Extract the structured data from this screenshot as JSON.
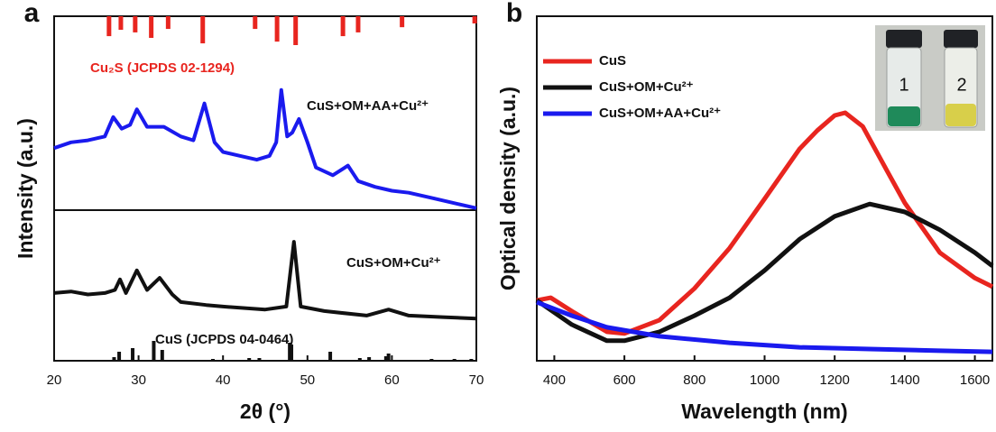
{
  "chart_data": [
    {
      "type": "xrd",
      "panel_label": "a",
      "xlabel": "2θ (°)",
      "ylabel": "Intensity (a.u.)",
      "xlim": [
        20,
        70
      ],
      "xticks": [
        20,
        30,
        40,
        50,
        60,
        70
      ],
      "panels": [
        {
          "ylim": [
            0,
            100
          ],
          "series": [
            {
              "name": "CuS+OM+AA+Cu²⁺",
              "color": "#1a1aee",
              "x": [
                20,
                22,
                24,
                26,
                27,
                28,
                29,
                29.8,
                31,
                33,
                35,
                36.5,
                37.8,
                39,
                40,
                42,
                44,
                45.5,
                46.3,
                46.9,
                47.6,
                48.2,
                49,
                50,
                51,
                53,
                54.8,
                56,
                58,
                60,
                62,
                65,
                68,
                70
              ],
              "values": [
                32,
                35,
                36,
                38,
                48,
                42,
                44,
                52,
                43,
                43,
                38,
                36,
                55,
                35,
                30,
                28,
                26,
                28,
                35,
                62,
                38,
                40,
                47,
                35,
                22,
                18,
                23,
                15,
                12,
                10,
                9,
                6,
                3,
                1
              ]
            }
          ],
          "reference": {
            "name": "Cu₂S (JCPDS 02-1294)",
            "color": "#e8251f",
            "position": "top",
            "x": [
              26.5,
              27.9,
              29.6,
              31.5,
              33.5,
              37.6,
              43.8,
              46.4,
              48.6,
              54.2,
              56.0,
              61.2,
              69.8
            ],
            "values": [
              69,
              47,
              56,
              75,
              44,
              94,
              44,
              88,
              100,
              69,
              56,
              38,
              25
            ]
          }
        },
        {
          "ylim": [
            0,
            100
          ],
          "series": [
            {
              "name": "CuS+OM+Cu²⁺",
              "color": "#111111",
              "x": [
                20,
                22,
                24,
                26,
                27.2,
                27.8,
                28.5,
                29.8,
                31,
                32.5,
                34,
                35,
                38,
                40,
                45,
                47.5,
                48.4,
                49.2,
                52,
                57,
                59.6,
                62,
                66,
                70
              ],
              "values": [
                45,
                46,
                44,
                45,
                47,
                54,
                45,
                60,
                47,
                55,
                44,
                39,
                37,
                36,
                34,
                36,
                79,
                36,
                33,
                30,
                34,
                30,
                29,
                28
              ]
            }
          ],
          "reference": {
            "name": "CuS (JCPDS 04-0464)",
            "color": "#111111",
            "position": "bottom",
            "x": [
              27.1,
              27.7,
              29.3,
              31.8,
              32.8,
              38.8,
              43.1,
              44.3,
              47.9,
              48.1,
              52.7,
              56.2,
              57.3,
              59.3,
              59.6,
              64.7,
              67.4,
              69.4
            ],
            "values": [
              16,
              40,
              56,
              88,
              48,
              8,
              12,
              12,
              80,
              72,
              40,
              12,
              16,
              20,
              32,
              8,
              8,
              8
            ]
          }
        }
      ]
    },
    {
      "type": "line",
      "panel_label": "b",
      "xlabel": "Wavelength (nm)",
      "ylabel": "Optical density (a.u.)",
      "xlim": [
        350,
        1650
      ],
      "xticks": [
        400,
        600,
        800,
        1000,
        1200,
        1400,
        1600
      ],
      "ylim": [
        0,
        100
      ],
      "inset_labels": [
        "1",
        "2"
      ],
      "series": [
        {
          "name": "CuS",
          "color": "#e8251f",
          "x": [
            350,
            390,
            450,
            550,
            600,
            700,
            800,
            900,
            1000,
            1100,
            1150,
            1200,
            1230,
            1280,
            1350,
            1400,
            1500,
            1600,
            1650
          ],
          "values": [
            17.5,
            18.3,
            14.4,
            8.4,
            7.9,
            11.8,
            21,
            32.7,
            47,
            61.5,
            66.8,
            71.2,
            72,
            68,
            55,
            45.8,
            31.4,
            24,
            21.5
          ]
        },
        {
          "name": "CuS+OM+Cu²⁺",
          "color": "#111111",
          "x": [
            350,
            450,
            550,
            600,
            700,
            800,
            900,
            1000,
            1100,
            1200,
            1300,
            1400,
            1500,
            1600,
            1650
          ],
          "values": [
            17.5,
            10.5,
            5.8,
            5.8,
            8.4,
            13.1,
            18.3,
            26.2,
            35.3,
            41.9,
            45.5,
            43.2,
            38,
            31.4,
            27.5
          ]
        },
        {
          "name": "CuS+OM+AA+Cu²⁺",
          "color": "#1a1aee",
          "x": [
            350,
            450,
            550,
            700,
            900,
            1100,
            1300,
            1500,
            1650
          ],
          "values": [
            17,
            13.1,
            9.7,
            7.1,
            5.2,
            3.9,
            3.4,
            2.9,
            2.6
          ]
        }
      ]
    }
  ]
}
